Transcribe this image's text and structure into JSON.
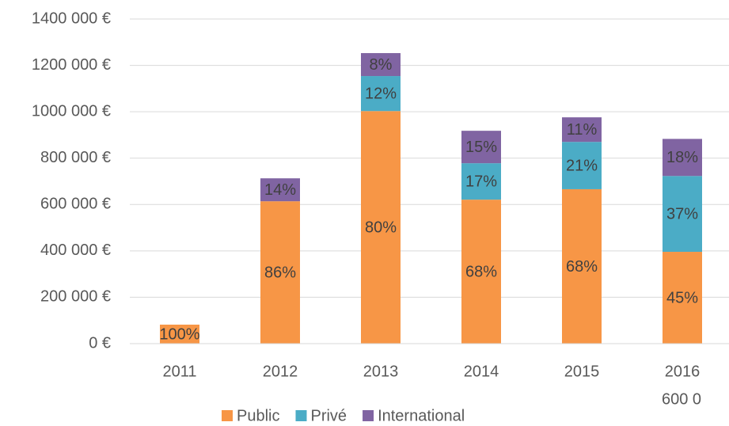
{
  "chart_data": {
    "type": "stacked_bar",
    "categories": [
      "2011",
      "2012",
      "2013",
      "2014",
      "2015",
      "2016"
    ],
    "series": [
      {
        "name": "Public",
        "color": "#f79646",
        "values": [
          82000,
          614000,
          1003000,
          621000,
          666000,
          396000
        ],
        "value_labels": [
          "100%",
          "86%",
          "80%",
          "68%",
          "68%",
          "45%"
        ]
      },
      {
        "name": "Privé",
        "color": "#4bacc6",
        "values": [
          null,
          null,
          151000,
          157000,
          204000,
          327000
        ],
        "value_labels": [
          null,
          null,
          "12%",
          "17%",
          "21%",
          "37%"
        ]
      },
      {
        "name": "International",
        "color": "#8064a2",
        "values": [
          null,
          99000,
          99000,
          140000,
          106000,
          160000
        ],
        "value_labels": [
          null,
          "14%",
          "8%",
          "15%",
          "11%",
          "18%"
        ]
      }
    ],
    "ylim": [
      0,
      1400000
    ],
    "yticks": [
      {
        "value": 0,
        "label": "0 €"
      },
      {
        "value": 200000,
        "label": "200 000 €"
      },
      {
        "value": 400000,
        "label": "400 000 €"
      },
      {
        "value": 600000,
        "label": "600 000 €"
      },
      {
        "value": 800000,
        "label": "800 000 €"
      },
      {
        "value": 1000000,
        "label": "1000 000 €"
      },
      {
        "value": 1200000,
        "label": "1200 000 €"
      },
      {
        "value": 1400000,
        "label": "1400 000 €"
      }
    ],
    "grid": true,
    "legend": "bottom",
    "annotation": "600 0"
  }
}
